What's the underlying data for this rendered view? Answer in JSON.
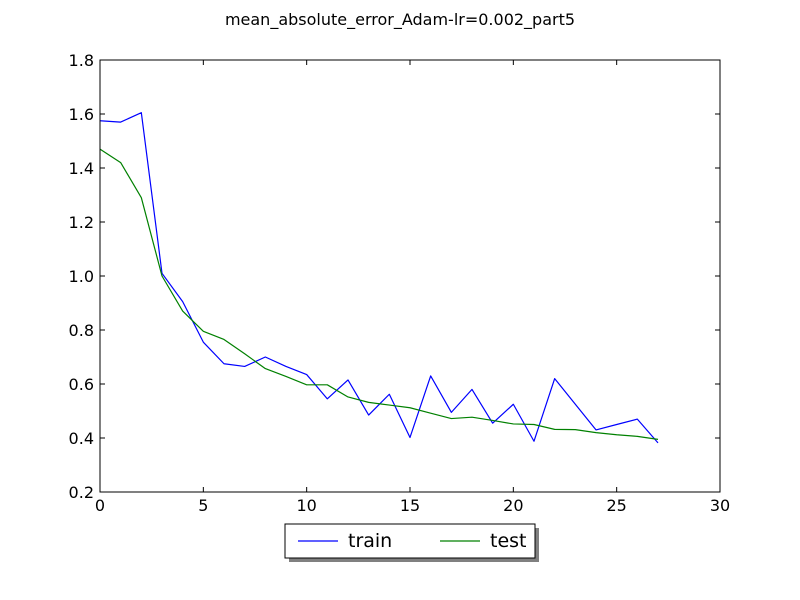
{
  "chart_data": {
    "type": "line",
    "title": "mean_absolute_error_Adam-lr=0.002_part5",
    "xlabel": "",
    "ylabel": "",
    "xlim": [
      0,
      30
    ],
    "ylim": [
      0.2,
      1.8
    ],
    "xticks": [
      0,
      5,
      10,
      15,
      20,
      25,
      30
    ],
    "yticks": [
      0.2,
      0.4,
      0.6,
      0.8,
      1.0,
      1.2,
      1.4,
      1.6,
      1.8
    ],
    "xtick_labels": [
      "0",
      "5",
      "10",
      "15",
      "20",
      "25",
      "30"
    ],
    "ytick_labels": [
      "0.2",
      "0.4",
      "0.6",
      "0.8",
      "1.0",
      "1.2",
      "1.4",
      "1.6",
      "1.8"
    ],
    "grid": false,
    "legend_placement": "below plot, centered",
    "series": [
      {
        "name": "train",
        "color": "#0000ff",
        "x": [
          0,
          1,
          2,
          3,
          4,
          5,
          6,
          7,
          8,
          9,
          10,
          11,
          12,
          13,
          14,
          15,
          16,
          17,
          18,
          19,
          20,
          21,
          22,
          23,
          24,
          25,
          26,
          27
        ],
        "y": [
          1.575,
          1.57,
          1.605,
          1.01,
          0.905,
          0.755,
          0.675,
          0.665,
          0.7,
          0.665,
          0.635,
          0.545,
          0.615,
          0.485,
          0.562,
          0.402,
          0.63,
          0.495,
          0.58,
          0.455,
          0.525,
          0.388,
          0.62,
          0.525,
          0.43,
          0.45,
          0.47,
          0.382
        ]
      },
      {
        "name": "test",
        "color": "#008000",
        "x": [
          0,
          1,
          2,
          3,
          4,
          5,
          6,
          7,
          8,
          9,
          10,
          11,
          12,
          13,
          14,
          15,
          16,
          17,
          18,
          19,
          20,
          21,
          22,
          23,
          24,
          25,
          26,
          27
        ],
        "y": [
          1.47,
          1.42,
          1.29,
          1.0,
          0.87,
          0.795,
          0.765,
          0.712,
          0.657,
          0.628,
          0.597,
          0.597,
          0.552,
          0.532,
          0.522,
          0.512,
          0.492,
          0.472,
          0.477,
          0.465,
          0.452,
          0.45,
          0.432,
          0.431,
          0.42,
          0.412,
          0.406,
          0.395
        ]
      }
    ]
  }
}
